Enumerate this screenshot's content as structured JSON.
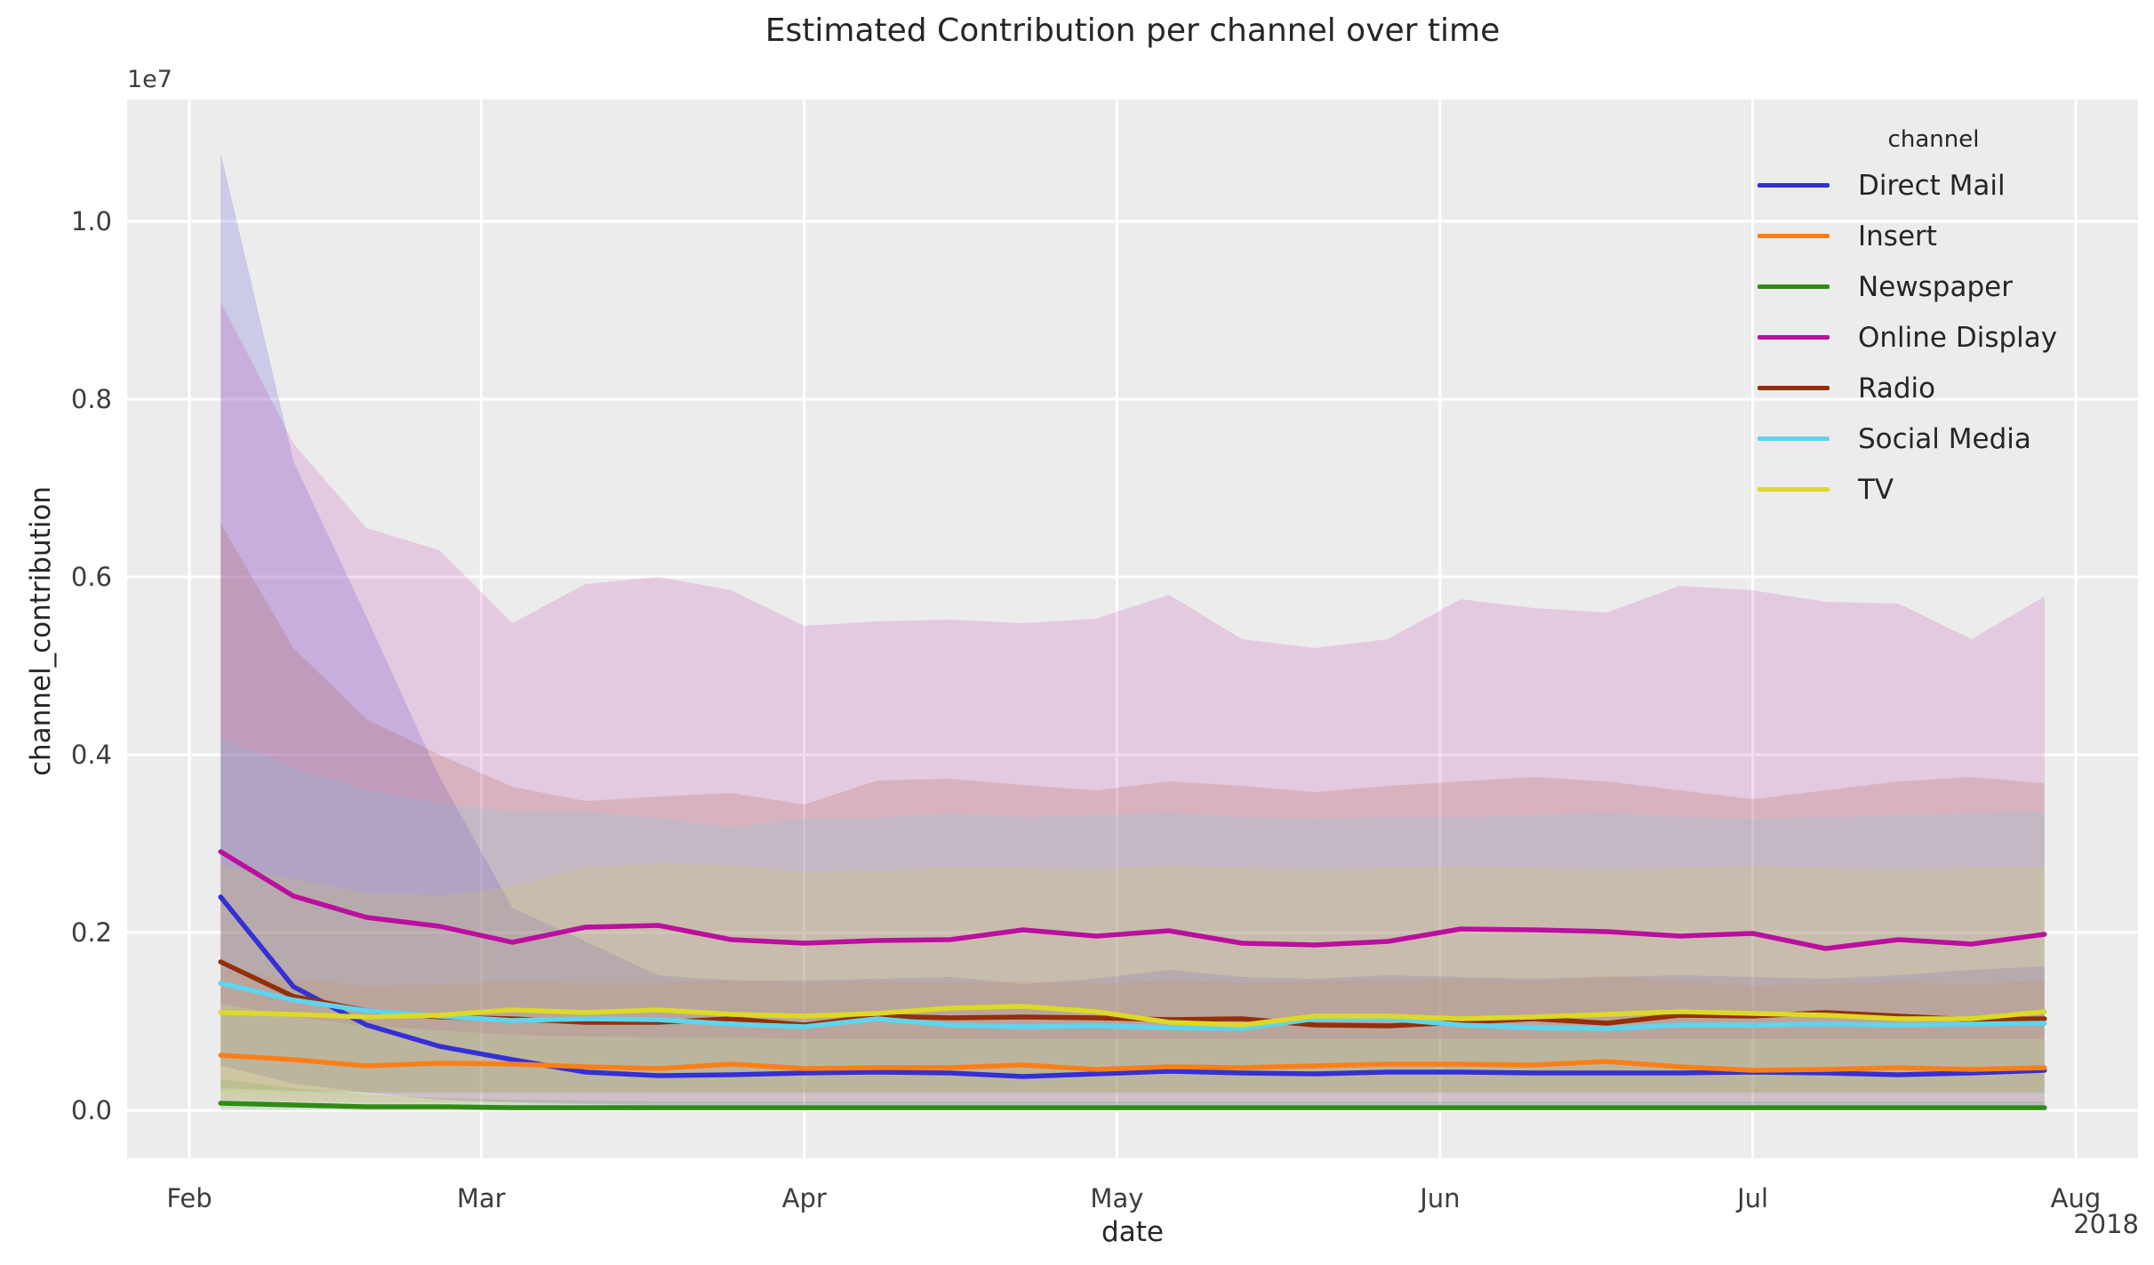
{
  "chart_data": {
    "type": "line",
    "title": "Estimated Contribution per channel over time",
    "xlabel": "date",
    "ylabel": "channel_contribution",
    "y_offset_text": "1e7",
    "x_year_label": "2018",
    "legend_title": "channel",
    "legend_position": "upper right",
    "grid": true,
    "background_color": "#ececec",
    "gridline_color": "#ffffff",
    "ylim_1e7": [
      -0.054,
      1.141
    ],
    "y_ticks": [
      "0.0",
      "0.2",
      "0.4",
      "0.6",
      "0.8",
      "1.0"
    ],
    "x_ticks": [
      "Feb",
      "Mar",
      "Apr",
      "May",
      "Jun",
      "Jul",
      "Aug"
    ],
    "x_tick_days": [
      0,
      28,
      59,
      89,
      120,
      150,
      181
    ],
    "x_dates": [
      "Feb 4",
      "Feb 11",
      "Feb 18",
      "Feb 25",
      "Mar 4",
      "Mar 11",
      "Mar 18",
      "Mar 25",
      "Apr 1",
      "Apr 8",
      "Apr 15",
      "Apr 22",
      "Apr 29",
      "May 6",
      "May 13",
      "May 20",
      "May 27",
      "Jun 3",
      "Jun 10",
      "Jun 17",
      "Jun 24",
      "Jul 1",
      "Jul 8",
      "Jul 15",
      "Jul 22",
      "Jul 29"
    ],
    "x_days": [
      3,
      10,
      17,
      24,
      31,
      38,
      45,
      52,
      59,
      66,
      73,
      80,
      87,
      94,
      101,
      108,
      115,
      122,
      129,
      136,
      143,
      150,
      157,
      164,
      171,
      178
    ],
    "units": "1e7",
    "series": [
      {
        "name": "Direct Mail",
        "color": "#3530d5",
        "band_alpha": 0.18,
        "values": [
          0.24,
          0.139,
          0.096,
          0.072,
          0.057,
          0.043,
          0.039,
          0.04,
          0.042,
          0.043,
          0.042,
          0.038,
          0.041,
          0.044,
          0.042,
          0.041,
          0.043,
          0.043,
          0.042,
          0.042,
          0.042,
          0.043,
          0.042,
          0.04,
          0.042,
          0.045
        ],
        "band_top": [
          1.077,
          0.73,
          0.555,
          0.375,
          0.228,
          0.19,
          0.152,
          0.146,
          0.146,
          0.148,
          0.15,
          0.142,
          0.148,
          0.158,
          0.15,
          0.148,
          0.152,
          0.15,
          0.148,
          0.15,
          0.152,
          0.15,
          0.148,
          0.152,
          0.158,
          0.162
        ],
        "band_bottom": [
          0.05,
          0.03,
          0.02,
          0.012,
          0.009,
          0.007,
          0.006,
          0.006,
          0.006,
          0.006,
          0.006,
          0.006,
          0.006,
          0.006,
          0.006,
          0.006,
          0.006,
          0.006,
          0.006,
          0.006,
          0.006,
          0.006,
          0.006,
          0.006,
          0.006,
          0.006
        ]
      },
      {
        "name": "Insert",
        "color": "#fb7f17",
        "band_alpha": 0.15,
        "values": [
          0.062,
          0.057,
          0.05,
          0.053,
          0.052,
          0.049,
          0.047,
          0.052,
          0.047,
          0.048,
          0.048,
          0.051,
          0.046,
          0.049,
          0.048,
          0.05,
          0.052,
          0.052,
          0.051,
          0.055,
          0.049,
          0.045,
          0.046,
          0.048,
          0.046,
          0.048
        ],
        "band_top": [
          0.158,
          0.148,
          0.14,
          0.142,
          0.144,
          0.143,
          0.143,
          0.147,
          0.143,
          0.145,
          0.143,
          0.145,
          0.142,
          0.145,
          0.143,
          0.145,
          0.147,
          0.148,
          0.145,
          0.152,
          0.145,
          0.14,
          0.142,
          0.144,
          0.142,
          0.145
        ],
        "band_bottom": [
          0.012,
          0.01,
          0.009,
          0.009,
          0.009,
          0.008,
          0.008,
          0.008,
          0.008,
          0.008,
          0.008,
          0.008,
          0.008,
          0.008,
          0.008,
          0.008,
          0.008,
          0.008,
          0.008,
          0.008,
          0.008,
          0.008,
          0.008,
          0.008,
          0.008,
          0.008
        ]
      },
      {
        "name": "Newspaper",
        "color": "#2f8b14",
        "band_alpha": 0.15,
        "values": [
          0.008,
          0.006,
          0.004,
          0.004,
          0.003,
          0.003,
          0.003,
          0.003,
          0.003,
          0.003,
          0.003,
          0.003,
          0.003,
          0.003,
          0.003,
          0.003,
          0.003,
          0.003,
          0.003,
          0.003,
          0.003,
          0.003,
          0.003,
          0.003,
          0.003,
          0.003
        ],
        "band_top": [
          0.035,
          0.025,
          0.018,
          0.014,
          0.012,
          0.011,
          0.01,
          0.01,
          0.01,
          0.01,
          0.01,
          0.01,
          0.01,
          0.01,
          0.01,
          0.01,
          0.01,
          0.01,
          0.01,
          0.01,
          0.01,
          0.01,
          0.01,
          0.01,
          0.01,
          0.01
        ],
        "band_bottom": [
          0.0,
          0.0,
          0.0,
          0.0,
          0.0,
          0.0,
          0.0,
          0.0,
          0.0,
          0.0,
          0.0,
          0.0,
          0.0,
          0.0,
          0.0,
          0.0,
          0.0,
          0.0,
          0.0,
          0.0,
          0.0,
          0.0,
          0.0,
          0.0,
          0.0,
          0.0
        ]
      },
      {
        "name": "Online Display",
        "color": "#bb0f9e",
        "band_alpha": 0.15,
        "values": [
          0.291,
          0.241,
          0.217,
          0.207,
          0.189,
          0.206,
          0.208,
          0.192,
          0.188,
          0.191,
          0.192,
          0.203,
          0.196,
          0.202,
          0.188,
          0.186,
          0.19,
          0.204,
          0.203,
          0.201,
          0.196,
          0.199,
          0.182,
          0.192,
          0.187,
          0.198
        ],
        "band_top": [
          0.91,
          0.75,
          0.655,
          0.63,
          0.548,
          0.592,
          0.6,
          0.585,
          0.545,
          0.55,
          0.552,
          0.548,
          0.553,
          0.58,
          0.53,
          0.52,
          0.53,
          0.575,
          0.565,
          0.56,
          0.59,
          0.585,
          0.572,
          0.57,
          0.53,
          0.578
        ],
        "band_bottom": [
          0.12,
          0.105,
          0.095,
          0.09,
          0.085,
          0.083,
          0.082,
          0.082,
          0.08,
          0.08,
          0.08,
          0.08,
          0.08,
          0.08,
          0.08,
          0.08,
          0.08,
          0.08,
          0.08,
          0.08,
          0.08,
          0.08,
          0.08,
          0.08,
          0.08,
          0.08
        ]
      },
      {
        "name": "Radio",
        "color": "#933009",
        "band_alpha": 0.15,
        "values": [
          0.167,
          0.128,
          0.112,
          0.105,
          0.103,
          0.099,
          0.099,
          0.103,
          0.096,
          0.106,
          0.104,
          0.105,
          0.104,
          0.102,
          0.103,
          0.096,
          0.095,
          0.099,
          0.103,
          0.098,
          0.107,
          0.106,
          0.11,
          0.106,
          0.102,
          0.103
        ],
        "band_top": [
          0.66,
          0.52,
          0.44,
          0.4,
          0.364,
          0.348,
          0.353,
          0.357,
          0.344,
          0.371,
          0.373,
          0.366,
          0.36,
          0.37,
          0.365,
          0.358,
          0.365,
          0.37,
          0.375,
          0.37,
          0.36,
          0.35,
          0.36,
          0.37,
          0.375,
          0.368
        ],
        "band_bottom": [
          0.025,
          0.022,
          0.02,
          0.02,
          0.02,
          0.02,
          0.02,
          0.02,
          0.02,
          0.02,
          0.02,
          0.02,
          0.02,
          0.02,
          0.02,
          0.02,
          0.02,
          0.02,
          0.02,
          0.02,
          0.02,
          0.02,
          0.02,
          0.02,
          0.02,
          0.02
        ]
      },
      {
        "name": "Social Media",
        "color": "#5ed5ee",
        "band_alpha": 0.15,
        "values": [
          0.143,
          0.124,
          0.112,
          0.106,
          0.101,
          0.103,
          0.102,
          0.097,
          0.094,
          0.103,
          0.096,
          0.094,
          0.095,
          0.093,
          0.092,
          0.103,
          0.103,
          0.096,
          0.093,
          0.092,
          0.096,
          0.096,
          0.097,
          0.096,
          0.097,
          0.098
        ],
        "band_top": [
          0.42,
          0.385,
          0.36,
          0.345,
          0.336,
          0.336,
          0.329,
          0.318,
          0.329,
          0.329,
          0.334,
          0.33,
          0.332,
          0.335,
          0.33,
          0.328,
          0.33,
          0.33,
          0.332,
          0.335,
          0.33,
          0.328,
          0.33,
          0.332,
          0.334,
          0.336
        ],
        "band_bottom": [
          0.022,
          0.02,
          0.018,
          0.018,
          0.018,
          0.018,
          0.018,
          0.018,
          0.018,
          0.018,
          0.018,
          0.018,
          0.018,
          0.018,
          0.018,
          0.018,
          0.018,
          0.018,
          0.018,
          0.018,
          0.018,
          0.018,
          0.018,
          0.018,
          0.018,
          0.018
        ]
      },
      {
        "name": "TV",
        "color": "#dcd927",
        "band_alpha": 0.15,
        "values": [
          0.11,
          0.108,
          0.105,
          0.107,
          0.113,
          0.11,
          0.113,
          0.108,
          0.106,
          0.109,
          0.115,
          0.117,
          0.111,
          0.099,
          0.096,
          0.106,
          0.106,
          0.103,
          0.105,
          0.108,
          0.111,
          0.109,
          0.107,
          0.103,
          0.103,
          0.111
        ],
        "band_top": [
          0.275,
          0.26,
          0.245,
          0.242,
          0.252,
          0.273,
          0.278,
          0.275,
          0.268,
          0.269,
          0.273,
          0.272,
          0.27,
          0.275,
          0.272,
          0.27,
          0.272,
          0.274,
          0.272,
          0.27,
          0.272,
          0.274,
          0.272,
          0.27,
          0.272,
          0.274
        ],
        "band_bottom": [
          0.02,
          0.02,
          0.02,
          0.02,
          0.02,
          0.02,
          0.02,
          0.02,
          0.02,
          0.02,
          0.02,
          0.02,
          0.02,
          0.02,
          0.02,
          0.02,
          0.02,
          0.02,
          0.02,
          0.02,
          0.02,
          0.02,
          0.02,
          0.02,
          0.02,
          0.02
        ]
      }
    ]
  }
}
